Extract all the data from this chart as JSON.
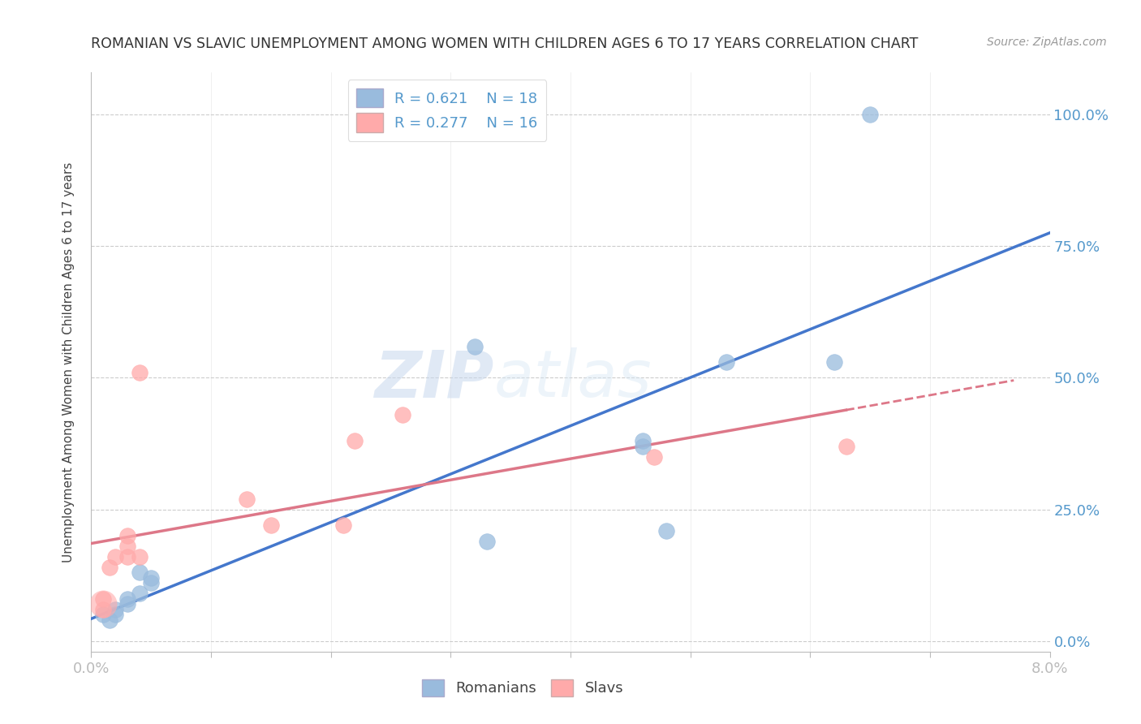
{
  "title": "ROMANIAN VS SLAVIC UNEMPLOYMENT AMONG WOMEN WITH CHILDREN AGES 6 TO 17 YEARS CORRELATION CHART",
  "source_text": "Source: ZipAtlas.com",
  "ylabel": "Unemployment Among Women with Children Ages 6 to 17 years",
  "xlim": [
    0.0,
    0.08
  ],
  "ylim": [
    -0.02,
    1.08
  ],
  "xticks": [
    0.0,
    0.01,
    0.02,
    0.03,
    0.04,
    0.05,
    0.06,
    0.07,
    0.08
  ],
  "xticklabels_sparse": [
    "0.0%",
    "",
    "",
    "",
    "",
    "",
    "",
    "",
    "8.0%"
  ],
  "yticks": [
    0.0,
    0.25,
    0.5,
    0.75,
    1.0
  ],
  "yticklabels": [
    "0.0%",
    "25.0%",
    "50.0%",
    "75.0%",
    "100.0%"
  ],
  "grid_color": "#cccccc",
  "background_color": "#ffffff",
  "watermark_zip": "ZIP",
  "watermark_atlas": "atlas",
  "legend_r1": "R = 0.621",
  "legend_n1": "N = 18",
  "legend_r2": "R = 0.277",
  "legend_n2": "N = 16",
  "color_romanian": "#99bbdd",
  "color_slav": "#ffaaaa",
  "color_line_romanian": "#4477cc",
  "color_line_slav": "#dd7788",
  "tick_label_color": "#5599cc",
  "romanian_x": [
    0.001,
    0.0015,
    0.002,
    0.002,
    0.003,
    0.003,
    0.004,
    0.004,
    0.005,
    0.005,
    0.032,
    0.033,
    0.046,
    0.046,
    0.048,
    0.053,
    0.062,
    0.065
  ],
  "romanian_y": [
    0.05,
    0.04,
    0.06,
    0.05,
    0.08,
    0.07,
    0.09,
    0.13,
    0.11,
    0.12,
    0.56,
    0.19,
    0.37,
    0.38,
    0.21,
    0.53,
    0.53,
    1.0
  ],
  "slav_x": [
    0.001,
    0.001,
    0.0015,
    0.002,
    0.003,
    0.003,
    0.003,
    0.004,
    0.004,
    0.013,
    0.015,
    0.021,
    0.022,
    0.026,
    0.047,
    0.063
  ],
  "slav_y": [
    0.06,
    0.08,
    0.14,
    0.16,
    0.16,
    0.18,
    0.2,
    0.16,
    0.51,
    0.27,
    0.22,
    0.22,
    0.38,
    0.43,
    0.35,
    0.37
  ],
  "slav_large_x": [
    0.001
  ],
  "slav_large_y": [
    0.07
  ]
}
